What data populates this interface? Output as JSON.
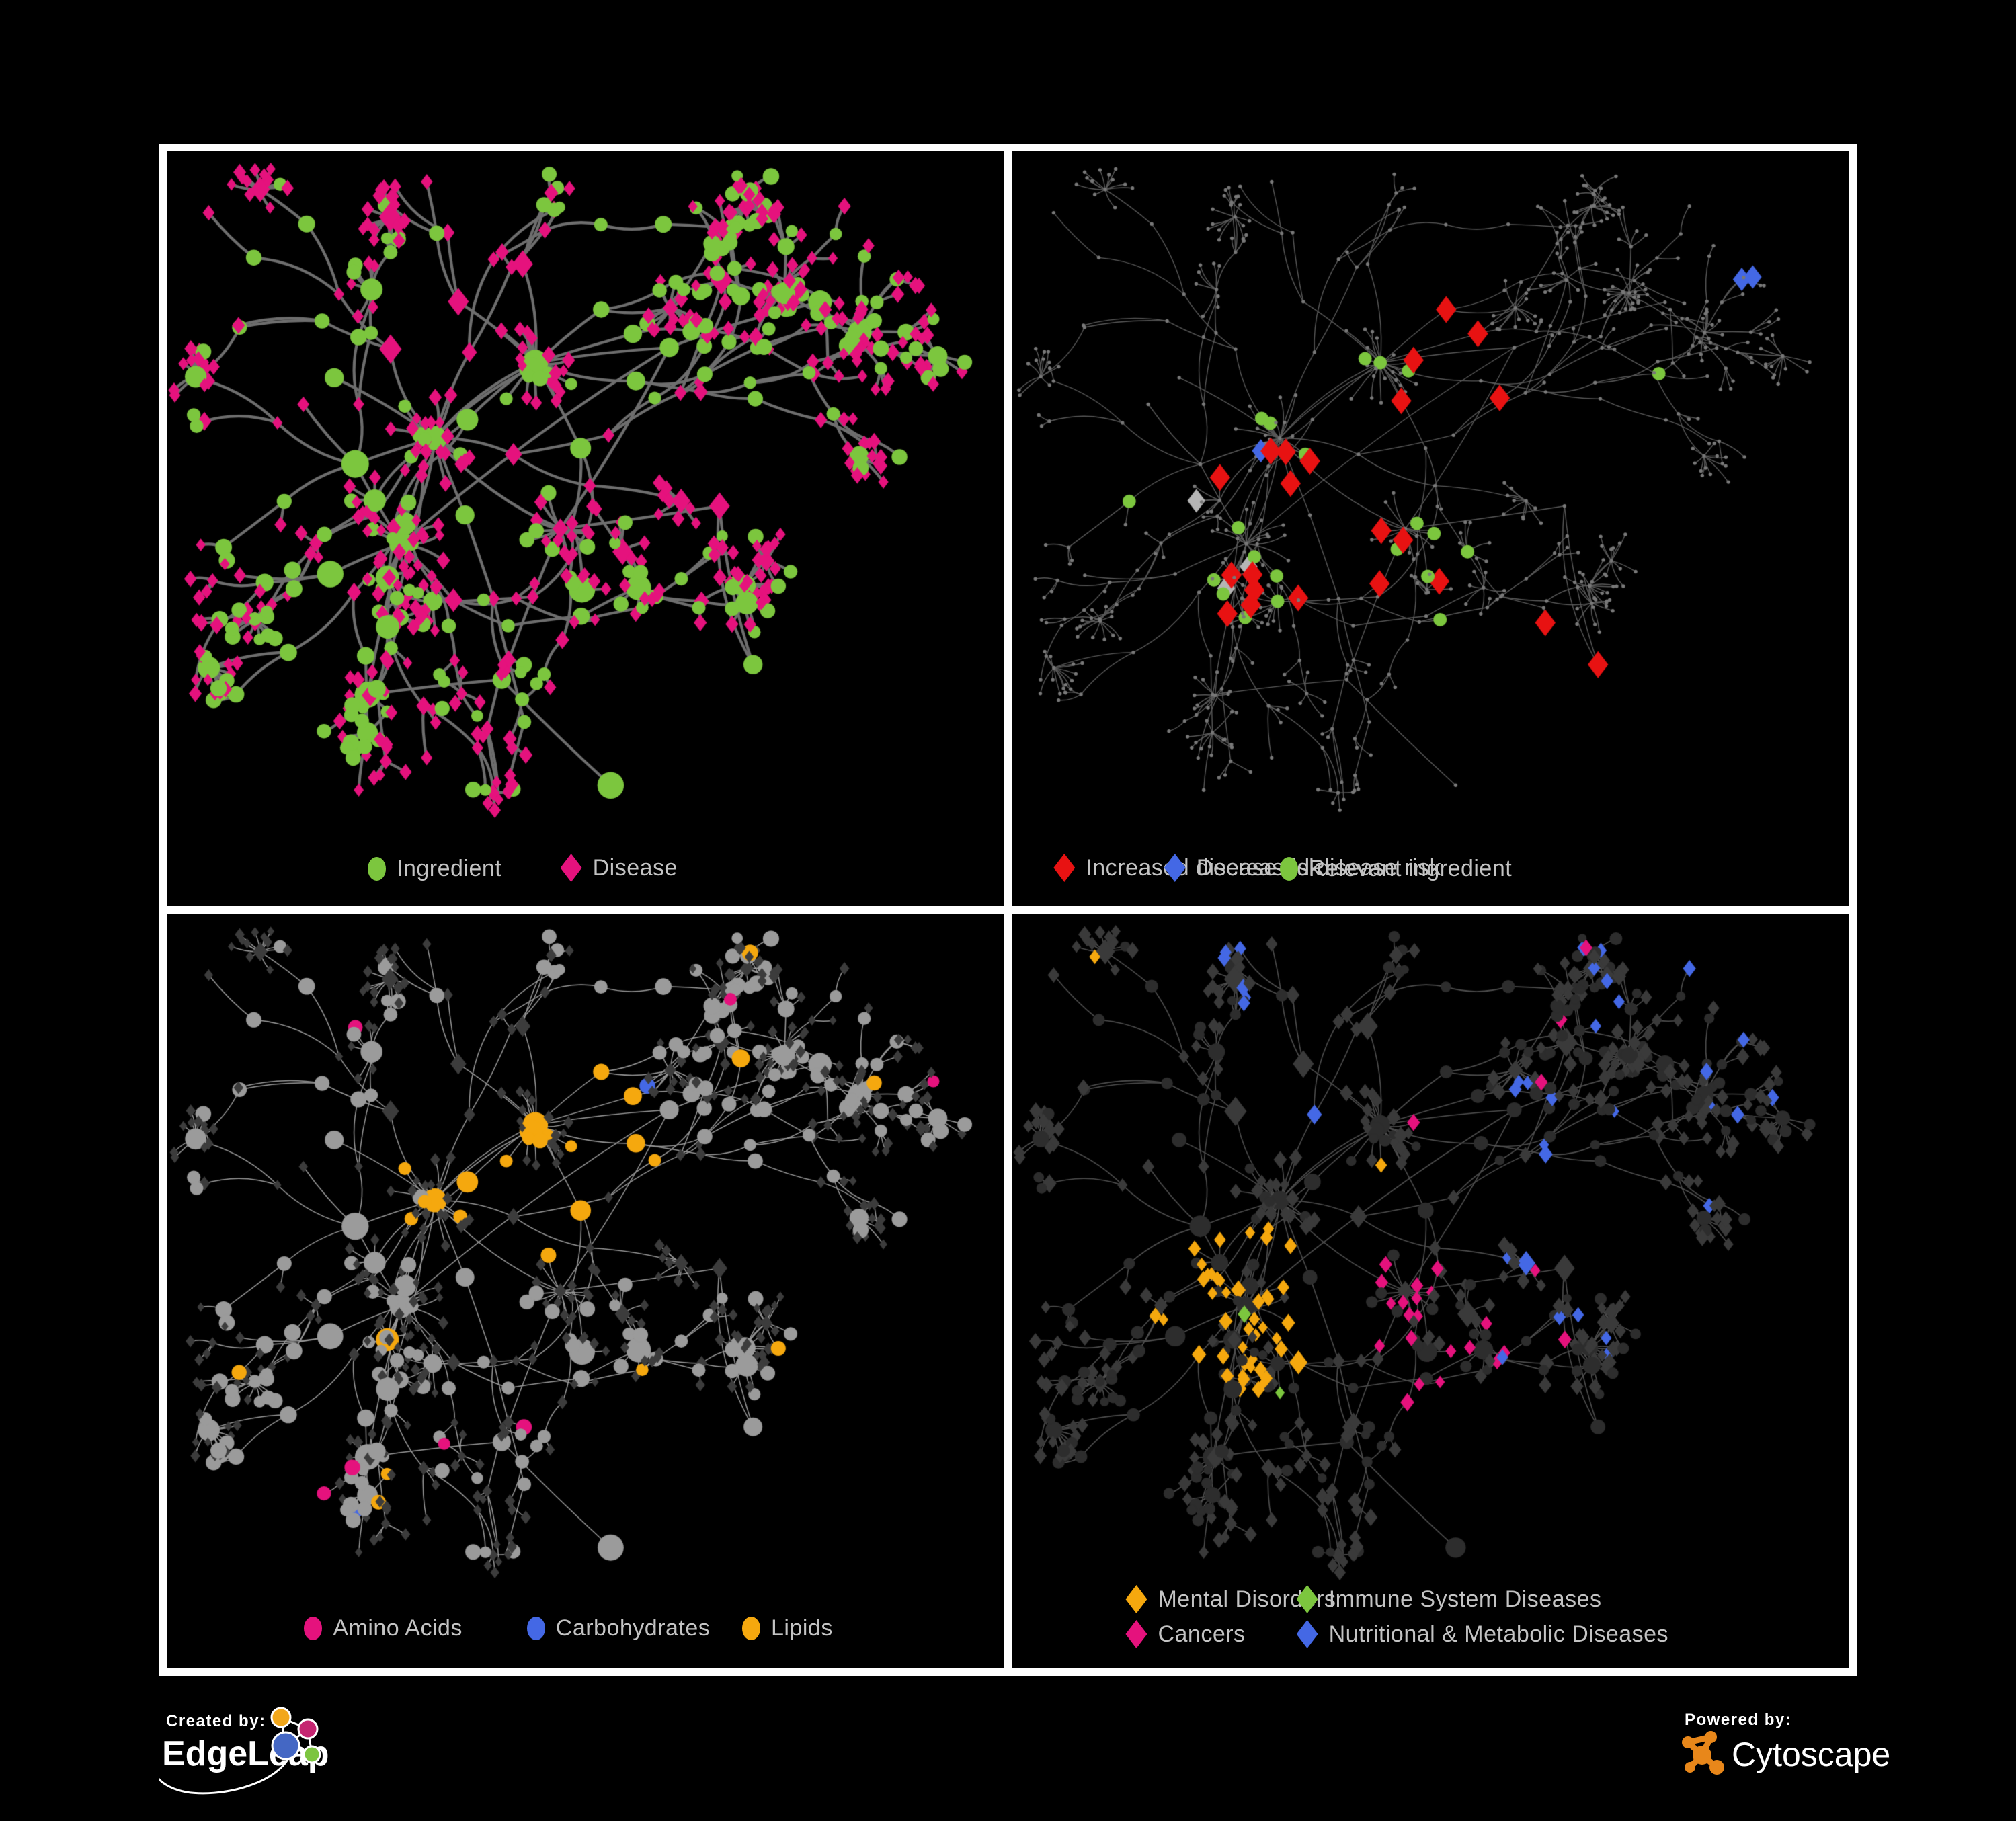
{
  "panels": [
    {
      "name": "ingredient-disease",
      "legend": [
        {
          "label": "Ingredient",
          "shape": "ellipse",
          "color": "#7CC63E"
        },
        {
          "label": "Disease",
          "shape": "diamond",
          "color": "#E5127D"
        }
      ]
    },
    {
      "name": "disease-risk",
      "legend": [
        {
          "label": "Increased disease risk",
          "shape": "diamond",
          "color": "#E81212"
        },
        {
          "label": "Decreased disease risk",
          "shape": "diamond",
          "color": "#4468E5"
        },
        {
          "label": "Relevant ingredient",
          "shape": "ellipse",
          "color": "#7CC63E"
        }
      ]
    },
    {
      "name": "nutrient-classes",
      "legend": [
        {
          "label": "Amino Acids",
          "shape": "ellipse",
          "color": "#E5127D"
        },
        {
          "label": "Carbohydrates",
          "shape": "ellipse",
          "color": "#4468E5"
        },
        {
          "label": "Lipids",
          "shape": "ellipse",
          "color": "#F5A80E"
        }
      ]
    },
    {
      "name": "disease-classes",
      "legend": [
        {
          "label": "Mental Disorders",
          "shape": "diamond",
          "color": "#F5A80E"
        },
        {
          "label": "Immune System Diseases",
          "shape": "diamond",
          "color": "#7CC63E"
        },
        {
          "label": "Cancers",
          "shape": "diamond",
          "color": "#E5127D"
        },
        {
          "label": "Nutritional & Metabolic Diseases",
          "shape": "diamond",
          "color": "#4468E5"
        }
      ]
    }
  ],
  "footer": {
    "created_by_label": "Created by:",
    "created_by_name": "EdgeLeap",
    "powered_by_label": "Powered by:",
    "powered_by_name": "Cytoscape"
  },
  "palette": {
    "background": "#000000",
    "panel_border": "#FFFFFF",
    "legend_text": "#C3C3C3",
    "ingredient_green": "#7CC63E",
    "disease_pink": "#E5127D",
    "risk_red": "#E81212",
    "risk_blue": "#4468E5",
    "neutral_gray": "#B5B5B5",
    "lipid_orange": "#F5A80E",
    "p1_edge": "#6E6E6E",
    "p2_edge": "#5A5A5A",
    "p3_edge": "#9A9A9A",
    "p4_edge": "#4F4F4F",
    "p2_dot": "#787878",
    "p3_circle": "#9B9B9B",
    "p3_diamond": "#3C3C3C",
    "p4_circle": "#2D2D2D",
    "p4_diamond": "#3A3A3A",
    "edgeleap_orange": "#F2A71B",
    "edgeleap_pink": "#C52571",
    "edgeleap_blue": "#4467C4",
    "edgeleap_green": "#7CC540",
    "cytoscape_orange": "#E8871A"
  }
}
